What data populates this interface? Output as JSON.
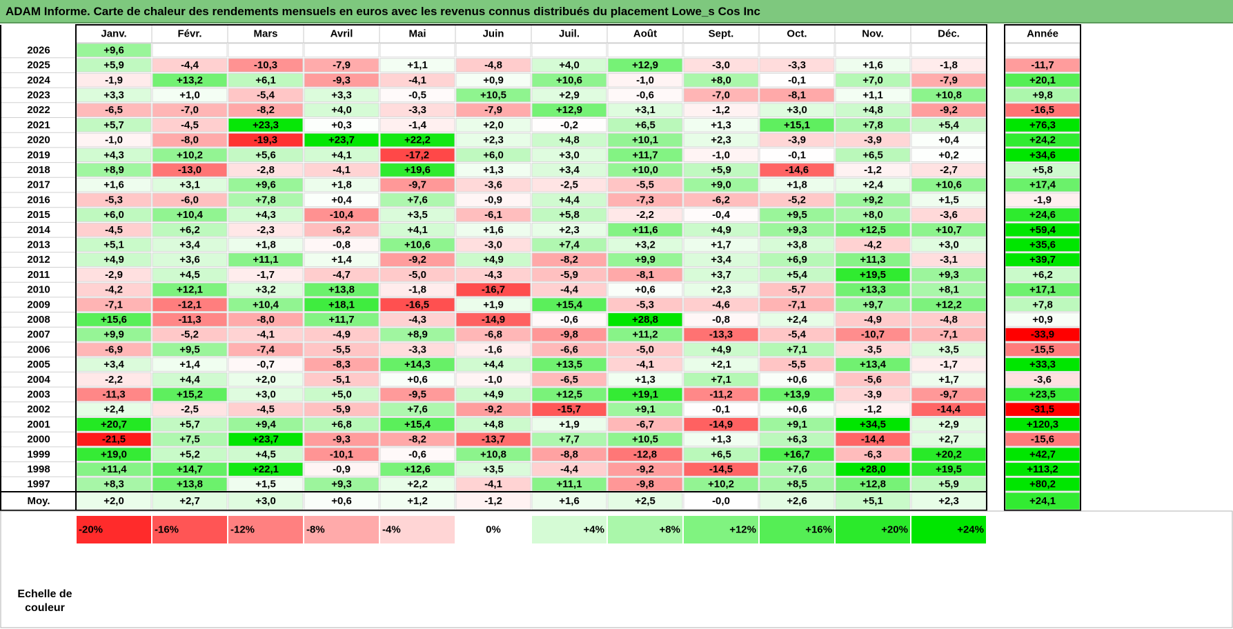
{
  "title": "ADAM Informe. Carte de chaleur des rendements mensuels en euros avec les revenus connus distribués du placement Lowe_s Cos Inc",
  "chart_data": {
    "type": "heatmap",
    "title": "ADAM Informe. Carte de chaleur des rendements mensuels en euros avec les revenus connus distribués du placement Lowe_s Cos Inc",
    "columns": [
      "Janv.",
      "Févr.",
      "Mars",
      "Avril",
      "Mai",
      "Juin",
      "Juil.",
      "Août",
      "Sept.",
      "Oct.",
      "Nov.",
      "Déc."
    ],
    "year_header": "Année",
    "rows": [
      {
        "year": "2026",
        "values": [
          "+9,6",
          "",
          "",
          "",
          "",
          "",
          "",
          "",
          "",
          "",
          "",
          ""
        ],
        "annual": ""
      },
      {
        "year": "2025",
        "values": [
          "+5,9",
          "-4,4",
          "-10,3",
          "-7,9",
          "+1,1",
          "-4,8",
          "+4,0",
          "+12,9",
          "-3,0",
          "-3,3",
          "+1,6",
          "-1,8"
        ],
        "annual": "-11,7"
      },
      {
        "year": "2024",
        "values": [
          "-1,9",
          "+13,2",
          "+6,1",
          "-9,3",
          "-4,1",
          "+0,9",
          "+10,6",
          "-1,0",
          "+8,0",
          "-0,1",
          "+7,0",
          "-7,9"
        ],
        "annual": "+20,1"
      },
      {
        "year": "2023",
        "values": [
          "+3,3",
          "+1,0",
          "-5,4",
          "+3,3",
          "-0,5",
          "+10,5",
          "+2,9",
          "-0,6",
          "-7,0",
          "-8,1",
          "+1,1",
          "+10,8"
        ],
        "annual": "+9,8"
      },
      {
        "year": "2022",
        "values": [
          "-6,5",
          "-7,0",
          "-8,2",
          "+4,0",
          "-3,3",
          "-7,9",
          "+12,9",
          "+3,1",
          "-1,2",
          "+3,0",
          "+4,8",
          "-9,2"
        ],
        "annual": "-16,5"
      },
      {
        "year": "2021",
        "values": [
          "+5,7",
          "-4,5",
          "+23,3",
          "+0,3",
          "-1,4",
          "+2,0",
          "-0,2",
          "+6,5",
          "+1,3",
          "+15,1",
          "+7,8",
          "+5,4"
        ],
        "annual": "+76,3"
      },
      {
        "year": "2020",
        "values": [
          "-1,0",
          "-8,0",
          "-19,3",
          "+23,7",
          "+22,2",
          "+2,3",
          "+4,8",
          "+10,1",
          "+2,3",
          "-3,9",
          "-3,9",
          "+0,4"
        ],
        "annual": "+24,2"
      },
      {
        "year": "2019",
        "values": [
          "+4,3",
          "+10,2",
          "+5,6",
          "+4,1",
          "-17,2",
          "+6,0",
          "+3,0",
          "+11,7",
          "-1,0",
          "-0,1",
          "+6,5",
          "+0,2"
        ],
        "annual": "+34,6"
      },
      {
        "year": "2018",
        "values": [
          "+8,9",
          "-13,0",
          "-2,8",
          "-4,1",
          "+19,6",
          "+1,3",
          "+3,4",
          "+10,0",
          "+5,9",
          "-14,6",
          "-1,2",
          "-2,7"
        ],
        "annual": "+5,8"
      },
      {
        "year": "2017",
        "values": [
          "+1,6",
          "+3,1",
          "+9,6",
          "+1,8",
          "-9,7",
          "-3,6",
          "-2,5",
          "-5,5",
          "+9,0",
          "+1,8",
          "+2,4",
          "+10,6"
        ],
        "annual": "+17,4"
      },
      {
        "year": "2016",
        "values": [
          "-5,3",
          "-6,0",
          "+7,8",
          "+0,4",
          "+7,6",
          "-0,9",
          "+4,4",
          "-7,3",
          "-6,2",
          "-5,2",
          "+9,2",
          "+1,5"
        ],
        "annual": "-1,9"
      },
      {
        "year": "2015",
        "values": [
          "+6,0",
          "+10,4",
          "+4,3",
          "-10,4",
          "+3,5",
          "-6,1",
          "+5,8",
          "-2,2",
          "-0,4",
          "+9,5",
          "+8,0",
          "-3,6"
        ],
        "annual": "+24,6"
      },
      {
        "year": "2014",
        "values": [
          "-4,5",
          "+6,2",
          "-2,3",
          "-6,2",
          "+4,1",
          "+1,6",
          "+2,3",
          "+11,6",
          "+4,9",
          "+9,3",
          "+12,5",
          "+10,7"
        ],
        "annual": "+59,4"
      },
      {
        "year": "2013",
        "values": [
          "+5,1",
          "+3,4",
          "+1,8",
          "-0,8",
          "+10,6",
          "-3,0",
          "+7,4",
          "+3,2",
          "+1,7",
          "+3,8",
          "-4,2",
          "+3,0"
        ],
        "annual": "+35,6"
      },
      {
        "year": "2012",
        "values": [
          "+4,9",
          "+3,6",
          "+11,1",
          "+1,4",
          "-9,2",
          "+4,9",
          "-8,2",
          "+9,9",
          "+3,4",
          "+6,9",
          "+11,3",
          "-3,1"
        ],
        "annual": "+39,7"
      },
      {
        "year": "2011",
        "values": [
          "-2,9",
          "+4,5",
          "-1,7",
          "-4,7",
          "-5,0",
          "-4,3",
          "-5,9",
          "-8,1",
          "+3,7",
          "+5,4",
          "+19,5",
          "+9,3"
        ],
        "annual": "+6,2"
      },
      {
        "year": "2010",
        "values": [
          "-4,2",
          "+12,1",
          "+3,2",
          "+13,8",
          "-1,8",
          "-16,7",
          "-4,4",
          "+0,6",
          "+2,3",
          "-5,7",
          "+13,3",
          "+8,1"
        ],
        "annual": "+17,1"
      },
      {
        "year": "2009",
        "values": [
          "-7,1",
          "-12,1",
          "+10,4",
          "+18,1",
          "-16,5",
          "+1,9",
          "+15,4",
          "-5,3",
          "-4,6",
          "-7,1",
          "+9,7",
          "+12,2"
        ],
        "annual": "+7,8"
      },
      {
        "year": "2008",
        "values": [
          "+15,6",
          "-11,3",
          "-8,0",
          "+11,7",
          "-4,3",
          "-14,9",
          "-0,6",
          "+28,8",
          "-0,8",
          "+2,4",
          "-4,9",
          "-4,8"
        ],
        "annual": "+0,9"
      },
      {
        "year": "2007",
        "values": [
          "+9,9",
          "-5,2",
          "-4,1",
          "-4,9",
          "+8,9",
          "-6,8",
          "-9,8",
          "+11,2",
          "-13,3",
          "-5,4",
          "-10,7",
          "-7,1"
        ],
        "annual": "-33,9"
      },
      {
        "year": "2006",
        "values": [
          "-6,9",
          "+9,5",
          "-7,4",
          "-5,5",
          "-3,3",
          "-1,6",
          "-6,6",
          "-5,0",
          "+4,9",
          "+7,1",
          "-3,5",
          "+3,5"
        ],
        "annual": "-15,5"
      },
      {
        "year": "2005",
        "values": [
          "+3,4",
          "+1,4",
          "-0,7",
          "-8,3",
          "+14,3",
          "+4,4",
          "+13,5",
          "-4,1",
          "+2,1",
          "-5,5",
          "+13,4",
          "-1,7"
        ],
        "annual": "+33,3"
      },
      {
        "year": "2004",
        "values": [
          "-2,2",
          "+4,4",
          "+2,0",
          "-5,1",
          "+0,6",
          "-1,0",
          "-6,5",
          "+1,3",
          "+7,1",
          "+0,6",
          "-5,6",
          "+1,7"
        ],
        "annual": "-3,6"
      },
      {
        "year": "2003",
        "values": [
          "-11,3",
          "+15,2",
          "+3,0",
          "+5,0",
          "-9,5",
          "+4,9",
          "+12,5",
          "+19,1",
          "-11,2",
          "+13,9",
          "-3,9",
          "-9,7"
        ],
        "annual": "+23,5"
      },
      {
        "year": "2002",
        "values": [
          "+2,4",
          "-2,5",
          "-4,5",
          "-5,9",
          "+7,6",
          "-9,2",
          "-15,7",
          "+9,1",
          "-0,1",
          "+0,6",
          "-1,2",
          "-14,4"
        ],
        "annual": "-31,5"
      },
      {
        "year": "2001",
        "values": [
          "+20,7",
          "+5,7",
          "+9,4",
          "+6,8",
          "+15,4",
          "+4,8",
          "+1,9",
          "-6,7",
          "-14,9",
          "+9,1",
          "+34,5",
          "+2,9"
        ],
        "annual": "+120,3"
      },
      {
        "year": "2000",
        "values": [
          "-21,5",
          "+7,5",
          "+23,7",
          "-9,3",
          "-8,2",
          "-13,7",
          "+7,7",
          "+10,5",
          "+1,3",
          "+6,3",
          "-14,4",
          "+2,7"
        ],
        "annual": "-15,6"
      },
      {
        "year": "1999",
        "values": [
          "+19,0",
          "+5,2",
          "+4,5",
          "-10,1",
          "-0,6",
          "+10,8",
          "-8,8",
          "-12,8",
          "+6,5",
          "+16,7",
          "-6,3",
          "+20,2"
        ],
        "annual": "+42,7"
      },
      {
        "year": "1998",
        "values": [
          "+11,4",
          "+14,7",
          "+22,1",
          "-0,9",
          "+12,6",
          "+3,5",
          "-4,4",
          "-9,2",
          "-14,5",
          "+7,6",
          "+28,0",
          "+19,5"
        ],
        "annual": "+113,2"
      },
      {
        "year": "1997",
        "values": [
          "+8,3",
          "+13,8",
          "+1,5",
          "+9,3",
          "+2,2",
          "-4,1",
          "+11,1",
          "-9,8",
          "+10,2",
          "+8,5",
          "+12,8",
          "+5,9"
        ],
        "annual": "+80,2"
      }
    ],
    "average": {
      "label": "Moy.",
      "values": [
        "+2,0",
        "+2,7",
        "+3,0",
        "+0,6",
        "+1,2",
        "-1,2",
        "+1,6",
        "+2,5",
        "-0,0",
        "+2,6",
        "+5,1",
        "+2,3"
      ],
      "annual": "+24,1"
    },
    "color_scale": {
      "label_line1": "Echelle de",
      "label_line2": "couleur",
      "stops": [
        "-20%",
        "-16%",
        "-12%",
        "-8%",
        "-4%",
        "0%",
        "+4%",
        "+8%",
        "+12%",
        "+16%",
        "+20%",
        "+24%"
      ],
      "stop_values": [
        -20,
        -16,
        -12,
        -8,
        -4,
        0,
        4,
        8,
        12,
        16,
        20,
        24
      ]
    },
    "colors": {
      "negative_max": "#ff0000",
      "positive_max": "#00e600",
      "neutral": "#ffffff",
      "title_bg": "#7ec87e"
    }
  }
}
